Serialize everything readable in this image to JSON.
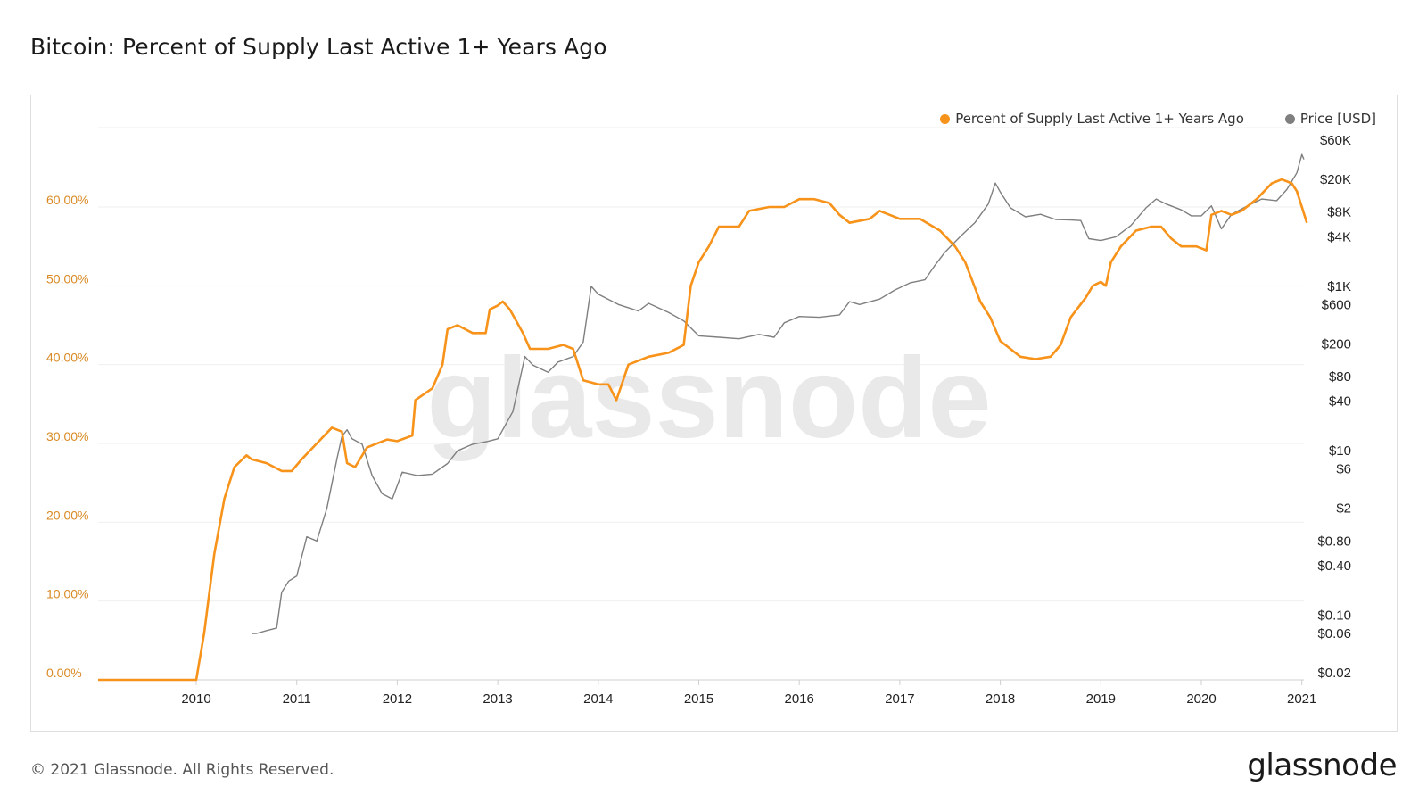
{
  "title": "Bitcoin: Percent of Supply Last Active 1+ Years Ago",
  "footer": {
    "copyright": "© 2021 Glassnode. All Rights Reserved.",
    "logo": "glassnode"
  },
  "watermark": "glassnode",
  "colors": {
    "supply": "#f7931a",
    "price": "#7f7f7f",
    "left_axis_text": "#d98a24",
    "right_axis_text": "#222222",
    "grid": "#efefef"
  },
  "chart_data": {
    "type": "line",
    "legend_position": "top-right",
    "grid": true,
    "x_ticks": [
      "2010",
      "2011",
      "2012",
      "2013",
      "2014",
      "2015",
      "2016",
      "2017",
      "2018",
      "2019",
      "2020",
      "2021"
    ],
    "y_left": {
      "ticks": [
        "0.00%",
        "10.00%",
        "20.00%",
        "30.00%",
        "40.00%",
        "50.00%",
        "60.00%"
      ],
      "range": [
        0,
        70
      ]
    },
    "y_right": {
      "scale": "log",
      "ticks": [
        "$60K",
        "$20K",
        "$8K",
        "$4K",
        "$1K",
        "$600",
        "$200",
        "$80",
        "$40",
        "$10",
        "$6",
        "$2",
        "$0.80",
        "$0.40",
        "$0.10",
        "$0.06",
        "$0.02"
      ],
      "tick_values": [
        60000,
        20000,
        8000,
        4000,
        1000,
        600,
        200,
        80,
        40,
        10,
        6,
        2,
        0.8,
        0.4,
        0.1,
        0.06,
        0.02
      ]
    },
    "series": [
      {
        "name": "Percent of Supply Last Active 1+ Years Ago",
        "axis": "left",
        "points": [
          [
            2009.0,
            0
          ],
          [
            2010.0,
            0
          ],
          [
            2010.08,
            6
          ],
          [
            2010.18,
            16
          ],
          [
            2010.28,
            23
          ],
          [
            2010.38,
            27
          ],
          [
            2010.5,
            28.5
          ],
          [
            2010.55,
            28
          ],
          [
            2010.7,
            27.5
          ],
          [
            2010.85,
            26.5
          ],
          [
            2010.95,
            26.5
          ],
          [
            2011.05,
            28
          ],
          [
            2011.2,
            30
          ],
          [
            2011.35,
            32
          ],
          [
            2011.45,
            31.5
          ],
          [
            2011.5,
            27.5
          ],
          [
            2011.58,
            27
          ],
          [
            2011.7,
            29.5
          ],
          [
            2011.9,
            30.5
          ],
          [
            2012.0,
            30.3
          ],
          [
            2012.15,
            31
          ],
          [
            2012.18,
            35.5
          ],
          [
            2012.35,
            37
          ],
          [
            2012.45,
            40
          ],
          [
            2012.5,
            44.5
          ],
          [
            2012.6,
            45
          ],
          [
            2012.75,
            44
          ],
          [
            2012.88,
            44
          ],
          [
            2012.92,
            47
          ],
          [
            2013.0,
            47.5
          ],
          [
            2013.05,
            48
          ],
          [
            2013.12,
            47
          ],
          [
            2013.25,
            44
          ],
          [
            2013.32,
            42
          ],
          [
            2013.5,
            42
          ],
          [
            2013.65,
            42.5
          ],
          [
            2013.75,
            42
          ],
          [
            2013.85,
            38
          ],
          [
            2014.0,
            37.5
          ],
          [
            2014.1,
            37.5
          ],
          [
            2014.18,
            35.5
          ],
          [
            2014.3,
            40
          ],
          [
            2014.5,
            41
          ],
          [
            2014.7,
            41.5
          ],
          [
            2014.85,
            42.5
          ],
          [
            2014.92,
            50
          ],
          [
            2015.0,
            53
          ],
          [
            2015.1,
            55
          ],
          [
            2015.2,
            57.5
          ],
          [
            2015.4,
            57.5
          ],
          [
            2015.5,
            59.5
          ],
          [
            2015.7,
            60
          ],
          [
            2015.85,
            60
          ],
          [
            2016.0,
            61
          ],
          [
            2016.15,
            61
          ],
          [
            2016.3,
            60.5
          ],
          [
            2016.4,
            59
          ],
          [
            2016.5,
            58
          ],
          [
            2016.7,
            58.5
          ],
          [
            2016.8,
            59.5
          ],
          [
            2016.9,
            59
          ],
          [
            2017.0,
            58.5
          ],
          [
            2017.2,
            58.5
          ],
          [
            2017.4,
            57
          ],
          [
            2017.55,
            55
          ],
          [
            2017.65,
            53
          ],
          [
            2017.8,
            48
          ],
          [
            2017.9,
            46
          ],
          [
            2018.0,
            43
          ],
          [
            2018.1,
            42
          ],
          [
            2018.2,
            41
          ],
          [
            2018.35,
            40.7
          ],
          [
            2018.5,
            41
          ],
          [
            2018.6,
            42.5
          ],
          [
            2018.7,
            46
          ],
          [
            2018.85,
            48.5
          ],
          [
            2018.92,
            50
          ],
          [
            2019.0,
            50.5
          ],
          [
            2019.05,
            50
          ],
          [
            2019.1,
            53
          ],
          [
            2019.2,
            55
          ],
          [
            2019.35,
            57
          ],
          [
            2019.5,
            57.5
          ],
          [
            2019.6,
            57.5
          ],
          [
            2019.7,
            56
          ],
          [
            2019.8,
            55
          ],
          [
            2019.95,
            55
          ],
          [
            2020.05,
            54.5
          ],
          [
            2020.1,
            59
          ],
          [
            2020.2,
            59.5
          ],
          [
            2020.3,
            59
          ],
          [
            2020.4,
            59.5
          ],
          [
            2020.55,
            61
          ],
          [
            2020.7,
            63
          ],
          [
            2020.8,
            63.5
          ],
          [
            2020.9,
            63
          ],
          [
            2020.95,
            62
          ],
          [
            2021.0,
            60
          ],
          [
            2021.05,
            58
          ]
        ]
      },
      {
        "name": "Price [USD]",
        "axis": "right",
        "points": [
          [
            2010.55,
            0.06
          ],
          [
            2010.6,
            0.06
          ],
          [
            2010.7,
            0.065
          ],
          [
            2010.8,
            0.07
          ],
          [
            2010.85,
            0.19
          ],
          [
            2010.92,
            0.26
          ],
          [
            2011.0,
            0.3
          ],
          [
            2011.1,
            0.9
          ],
          [
            2011.2,
            0.8
          ],
          [
            2011.3,
            2
          ],
          [
            2011.4,
            8
          ],
          [
            2011.45,
            15
          ],
          [
            2011.5,
            18
          ],
          [
            2011.55,
            14
          ],
          [
            2011.65,
            12
          ],
          [
            2011.75,
            5
          ],
          [
            2011.85,
            3
          ],
          [
            2011.95,
            2.6
          ],
          [
            2012.05,
            5.5
          ],
          [
            2012.2,
            5
          ],
          [
            2012.35,
            5.2
          ],
          [
            2012.5,
            7
          ],
          [
            2012.6,
            10
          ],
          [
            2012.75,
            12
          ],
          [
            2012.9,
            13
          ],
          [
            2013.0,
            14
          ],
          [
            2013.15,
            30
          ],
          [
            2013.27,
            140
          ],
          [
            2013.35,
            110
          ],
          [
            2013.5,
            90
          ],
          [
            2013.6,
            120
          ],
          [
            2013.75,
            140
          ],
          [
            2013.85,
            210
          ],
          [
            2013.93,
            1000
          ],
          [
            2014.0,
            800
          ],
          [
            2014.2,
            600
          ],
          [
            2014.4,
            500
          ],
          [
            2014.5,
            620
          ],
          [
            2014.7,
            480
          ],
          [
            2014.85,
            380
          ],
          [
            2015.0,
            250
          ],
          [
            2015.2,
            240
          ],
          [
            2015.4,
            230
          ],
          [
            2015.6,
            260
          ],
          [
            2015.75,
            240
          ],
          [
            2015.85,
            360
          ],
          [
            2016.0,
            430
          ],
          [
            2016.2,
            420
          ],
          [
            2016.4,
            450
          ],
          [
            2016.5,
            650
          ],
          [
            2016.6,
            600
          ],
          [
            2016.8,
            700
          ],
          [
            2016.95,
            900
          ],
          [
            2017.1,
            1100
          ],
          [
            2017.25,
            1200
          ],
          [
            2017.35,
            1800
          ],
          [
            2017.45,
            2600
          ],
          [
            2017.6,
            4000
          ],
          [
            2017.75,
            6000
          ],
          [
            2017.88,
            10000
          ],
          [
            2017.95,
            18000
          ],
          [
            2018.0,
            14000
          ],
          [
            2018.1,
            9000
          ],
          [
            2018.25,
            7000
          ],
          [
            2018.4,
            7500
          ],
          [
            2018.55,
            6500
          ],
          [
            2018.7,
            6400
          ],
          [
            2018.8,
            6300
          ],
          [
            2018.88,
            3800
          ],
          [
            2019.0,
            3600
          ],
          [
            2019.15,
            4000
          ],
          [
            2019.3,
            5500
          ],
          [
            2019.45,
            9000
          ],
          [
            2019.55,
            11500
          ],
          [
            2019.65,
            10000
          ],
          [
            2019.8,
            8500
          ],
          [
            2019.9,
            7200
          ],
          [
            2020.0,
            7200
          ],
          [
            2020.1,
            9500
          ],
          [
            2020.2,
            5000
          ],
          [
            2020.3,
            7500
          ],
          [
            2020.45,
            9400
          ],
          [
            2020.6,
            11500
          ],
          [
            2020.75,
            11000
          ],
          [
            2020.85,
            15000
          ],
          [
            2020.95,
            24000
          ],
          [
            2021.0,
            40000
          ],
          [
            2021.02,
            35000
          ]
        ]
      }
    ]
  }
}
